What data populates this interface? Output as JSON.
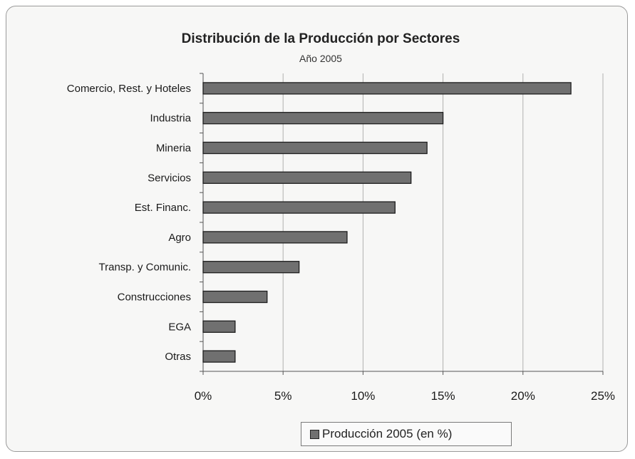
{
  "chart_data": {
    "type": "bar",
    "orientation": "horizontal",
    "title": "Distribución de la Producción por Sectores",
    "subtitle": "Año 2005",
    "categories": [
      "Comercio, Rest. y  Hoteles",
      "Industria",
      "Mineria",
      "Servicios",
      "Est. Financ.",
      "Agro",
      "Transp. y Comunic.",
      "Construcciones",
      "EGA",
      "Otras"
    ],
    "series": [
      {
        "name": "Producción 2005 (en %)",
        "values": [
          23,
          15,
          14,
          13,
          12,
          9,
          6,
          4,
          2,
          2
        ]
      }
    ],
    "xlim": [
      0,
      25
    ],
    "xticks": [
      "0%",
      "5%",
      "10%",
      "15%",
      "20%",
      "25%"
    ],
    "tick_values": [
      0,
      5,
      10,
      15,
      20,
      25
    ],
    "grid": true,
    "legend_position": "bottom",
    "colors": {
      "bar": "#707070",
      "bar_border": "#1e1e1e",
      "grid": "#b0b0b0"
    }
  }
}
